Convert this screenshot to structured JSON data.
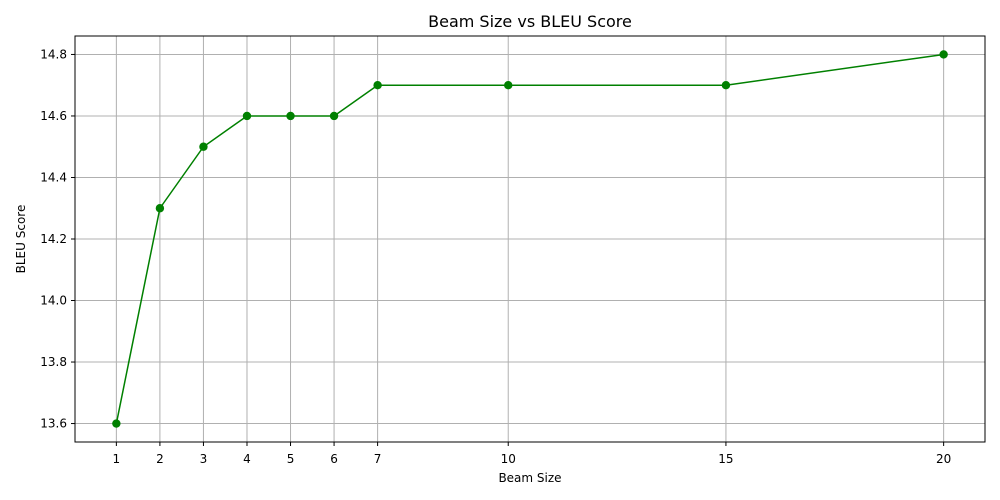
{
  "chart_data": {
    "type": "line",
    "title": "Beam Size vs BLEU Score",
    "xlabel": "Beam Size",
    "ylabel": "BLEU Score",
    "x": [
      1,
      2,
      3,
      4,
      5,
      6,
      7,
      10,
      15,
      20
    ],
    "series": [
      {
        "values": [
          13.6,
          14.3,
          14.5,
          14.6,
          14.6,
          14.6,
          14.7,
          14.7,
          14.7,
          14.8
        ]
      }
    ],
    "xticks": [
      1,
      2,
      3,
      4,
      5,
      6,
      7,
      10,
      15,
      20
    ],
    "yticks": [
      "13.6",
      "13.8",
      "14.0",
      "14.2",
      "14.4",
      "14.6",
      "14.8"
    ],
    "xlim": [
      0.05,
      20.95
    ],
    "ylim": [
      13.54,
      14.86
    ],
    "grid": true,
    "line_color": "#008000",
    "marker": "circle"
  }
}
